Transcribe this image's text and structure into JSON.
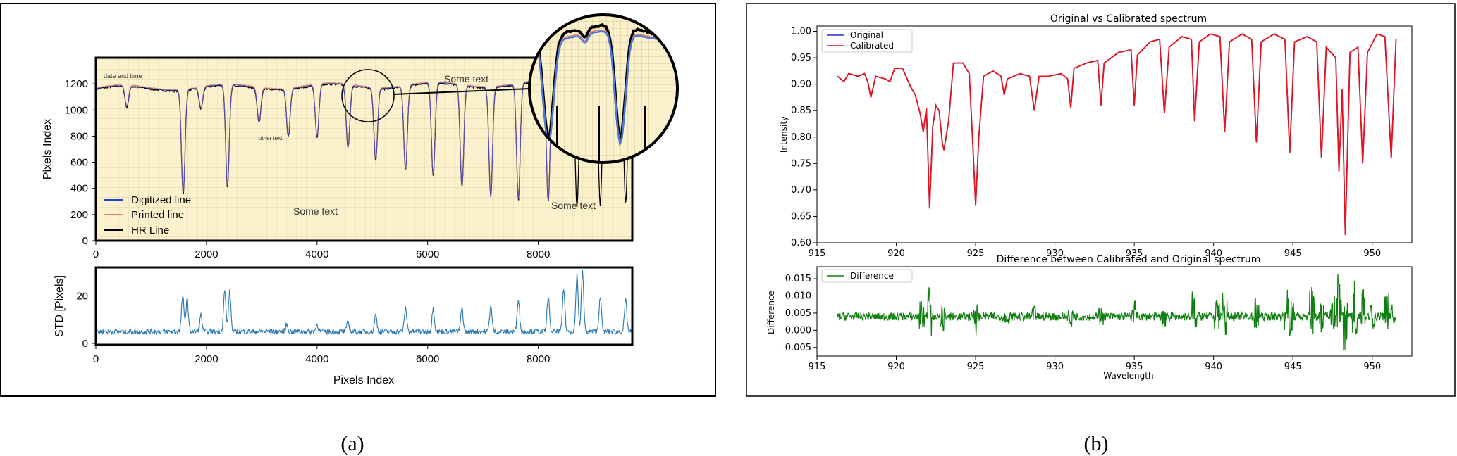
{
  "panels": {
    "a": {
      "label": "(a)"
    },
    "b": {
      "label": "(b)"
    }
  },
  "colors": {
    "paper": "#fbf1cc",
    "grid": "#d9c9a0",
    "digitized": "#1f3fd6",
    "printed": "#e8826a",
    "hr": "#000000",
    "std": "#2a78b4",
    "original": "#2030d0",
    "calibrated": "#e4141e",
    "difference": "#0f7f0f"
  },
  "chart_data": [
    {
      "id": "a-top",
      "type": "line",
      "title": "",
      "xlabel": "",
      "ylabel": "Pixels Index",
      "xlim": [
        0,
        9700
      ],
      "ylim": [
        0,
        1400
      ],
      "xticks": [
        "0",
        "2000",
        "4000",
        "6000",
        "8000"
      ],
      "yticks": [
        "0",
        "200",
        "400",
        "600",
        "800",
        "1000",
        "1200"
      ],
      "legend": {
        "placement": "lower-left",
        "entries": [
          "Digitized line",
          "Printed line",
          "HR Line"
        ]
      },
      "annotations": [
        "date and time",
        "other text",
        "Some text",
        "Some text",
        "Some text"
      ],
      "inset": "magnified circular zoom of region near x=4600–5100",
      "dips": [
        {
          "x": 560,
          "y": 1000
        },
        {
          "x": 1580,
          "y": 370
        },
        {
          "x": 1900,
          "y": 1000
        },
        {
          "x": 2380,
          "y": 380
        },
        {
          "x": 2950,
          "y": 900
        },
        {
          "x": 3480,
          "y": 800
        },
        {
          "x": 4000,
          "y": 760
        },
        {
          "x": 4560,
          "y": 680
        },
        {
          "x": 5060,
          "y": 610
        },
        {
          "x": 5600,
          "y": 520
        },
        {
          "x": 6100,
          "y": 450
        },
        {
          "x": 6620,
          "y": 380
        },
        {
          "x": 7140,
          "y": 320
        },
        {
          "x": 7640,
          "y": 270
        },
        {
          "x": 8180,
          "y": 250
        },
        {
          "x": 8700,
          "y": 230
        },
        {
          "x": 9120,
          "y": 250
        },
        {
          "x": 9580,
          "y": 240
        }
      ],
      "baseline": 1160
    },
    {
      "id": "a-bottom",
      "type": "line",
      "xlabel": "Pixels Index",
      "ylabel": "STD [Pixels]",
      "xlim": [
        0,
        9700
      ],
      "ylim": [
        0,
        32
      ],
      "xticks": [
        "0",
        "2000",
        "4000",
        "6000",
        "8000"
      ],
      "yticks": [
        "0",
        "20"
      ],
      "peaks": [
        {
          "x": 1570,
          "y": 20
        },
        {
          "x": 1650,
          "y": 19
        },
        {
          "x": 1900,
          "y": 12
        },
        {
          "x": 2330,
          "y": 22
        },
        {
          "x": 2420,
          "y": 22
        },
        {
          "x": 3450,
          "y": 8
        },
        {
          "x": 4000,
          "y": 8
        },
        {
          "x": 4560,
          "y": 9
        },
        {
          "x": 5060,
          "y": 12
        },
        {
          "x": 5600,
          "y": 15
        },
        {
          "x": 6100,
          "y": 15
        },
        {
          "x": 6620,
          "y": 15
        },
        {
          "x": 7140,
          "y": 16
        },
        {
          "x": 7640,
          "y": 19
        },
        {
          "x": 8180,
          "y": 20
        },
        {
          "x": 8460,
          "y": 23
        },
        {
          "x": 8700,
          "y": 29
        },
        {
          "x": 8800,
          "y": 30
        },
        {
          "x": 9120,
          "y": 20
        },
        {
          "x": 9580,
          "y": 18
        }
      ],
      "baseline": 5
    },
    {
      "id": "b-top",
      "type": "line",
      "title": "Original vs Calibrated spectrum",
      "xlabel": "",
      "ylabel": "Intensity",
      "xlim": [
        915,
        952.5
      ],
      "ylim": [
        0.6,
        1.01
      ],
      "xticks": [
        "915",
        "920",
        "925",
        "930",
        "935",
        "940",
        "945",
        "950"
      ],
      "yticks": [
        "0.60",
        "0.65",
        "0.70",
        "0.75",
        "0.80",
        "0.85",
        "0.90",
        "0.95",
        "1.00"
      ],
      "legend": {
        "placement": "top-left",
        "entries": [
          "Original",
          "Calibrated"
        ]
      },
      "series": [
        {
          "name": "Original"
        },
        {
          "name": "Calibrated"
        }
      ],
      "points": [
        [
          916.3,
          0.915
        ],
        [
          916.7,
          0.905
        ],
        [
          917.0,
          0.92
        ],
        [
          917.6,
          0.915
        ],
        [
          918.0,
          0.92
        ],
        [
          918.2,
          0.905
        ],
        [
          918.4,
          0.875
        ],
        [
          918.7,
          0.915
        ],
        [
          919.3,
          0.91
        ],
        [
          919.6,
          0.905
        ],
        [
          919.9,
          0.93
        ],
        [
          920.4,
          0.93
        ],
        [
          920.9,
          0.895
        ],
        [
          921.2,
          0.88
        ],
        [
          921.5,
          0.845
        ],
        [
          921.7,
          0.81
        ],
        [
          921.9,
          0.855
        ],
        [
          922.1,
          0.665
        ],
        [
          922.3,
          0.82
        ],
        [
          922.5,
          0.86
        ],
        [
          922.7,
          0.85
        ],
        [
          922.9,
          0.79
        ],
        [
          923.0,
          0.775
        ],
        [
          923.3,
          0.83
        ],
        [
          923.6,
          0.94
        ],
        [
          924.2,
          0.94
        ],
        [
          924.6,
          0.92
        ],
        [
          924.8,
          0.8
        ],
        [
          925.0,
          0.67
        ],
        [
          925.2,
          0.8
        ],
        [
          925.5,
          0.915
        ],
        [
          926.1,
          0.925
        ],
        [
          926.6,
          0.915
        ],
        [
          926.8,
          0.88
        ],
        [
          927.0,
          0.91
        ],
        [
          927.8,
          0.92
        ],
        [
          928.4,
          0.915
        ],
        [
          928.7,
          0.85
        ],
        [
          929.0,
          0.915
        ],
        [
          929.6,
          0.915
        ],
        [
          930.4,
          0.92
        ],
        [
          930.8,
          0.91
        ],
        [
          931.0,
          0.855
        ],
        [
          931.2,
          0.93
        ],
        [
          932.0,
          0.94
        ],
        [
          932.7,
          0.945
        ],
        [
          932.9,
          0.86
        ],
        [
          933.1,
          0.94
        ],
        [
          934.0,
          0.96
        ],
        [
          934.8,
          0.965
        ],
        [
          935.0,
          0.86
        ],
        [
          935.2,
          0.955
        ],
        [
          936.0,
          0.98
        ],
        [
          936.6,
          0.985
        ],
        [
          936.9,
          0.845
        ],
        [
          937.2,
          0.97
        ],
        [
          938.0,
          0.99
        ],
        [
          938.6,
          0.985
        ],
        [
          938.8,
          0.83
        ],
        [
          939.1,
          0.98
        ],
        [
          939.8,
          0.995
        ],
        [
          940.4,
          0.99
        ],
        [
          940.7,
          0.81
        ],
        [
          941.0,
          0.98
        ],
        [
          941.8,
          0.995
        ],
        [
          942.4,
          0.985
        ],
        [
          942.7,
          0.79
        ],
        [
          943.0,
          0.98
        ],
        [
          943.8,
          0.995
        ],
        [
          944.5,
          0.985
        ],
        [
          944.8,
          0.77
        ],
        [
          945.1,
          0.98
        ],
        [
          945.9,
          0.99
        ],
        [
          946.5,
          0.98
        ],
        [
          946.8,
          0.76
        ],
        [
          947.1,
          0.97
        ],
        [
          947.7,
          0.95
        ],
        [
          947.9,
          0.735
        ],
        [
          948.1,
          0.89
        ],
        [
          948.3,
          0.615
        ],
        [
          948.6,
          0.96
        ],
        [
          949.1,
          0.97
        ],
        [
          949.4,
          0.75
        ],
        [
          949.7,
          0.96
        ],
        [
          950.3,
          0.995
        ],
        [
          950.8,
          0.99
        ],
        [
          951.2,
          0.76
        ],
        [
          951.5,
          0.985
        ]
      ]
    },
    {
      "id": "b-bottom",
      "type": "line",
      "title": "Difference between Calibrated and Original spectrum",
      "xlabel": "Wavelength",
      "ylabel": "Difference",
      "xlim": [
        915,
        952.5
      ],
      "ylim": [
        -0.0075,
        0.0185
      ],
      "xticks": [
        "915",
        "920",
        "925",
        "930",
        "935",
        "940",
        "945",
        "950"
      ],
      "yticks": [
        "-0.005",
        "0.000",
        "0.005",
        "0.010",
        "0.015"
      ],
      "legend": {
        "placement": "top-left",
        "entries": [
          "Difference"
        ]
      },
      "series": [
        {
          "name": "Difference"
        }
      ],
      "baseline": 0.004,
      "spikes": [
        {
          "x": 922.1,
          "hi": 0.0125,
          "lo": -0.002
        },
        {
          "x": 921.6,
          "hi": 0.009,
          "lo": 0.0
        },
        {
          "x": 922.9,
          "hi": 0.008,
          "lo": -0.001
        },
        {
          "x": 925.0,
          "hi": 0.0095,
          "lo": -0.0015
        },
        {
          "x": 927.0,
          "hi": 0.005,
          "lo": 0.002
        },
        {
          "x": 928.7,
          "hi": 0.0075,
          "lo": 0.0015
        },
        {
          "x": 931.0,
          "hi": 0.0065,
          "lo": 0.001
        },
        {
          "x": 932.9,
          "hi": 0.007,
          "lo": 0.0015
        },
        {
          "x": 935.0,
          "hi": 0.009,
          "lo": 0.0
        },
        {
          "x": 936.9,
          "hi": 0.007,
          "lo": 0.0
        },
        {
          "x": 938.8,
          "hi": 0.0125,
          "lo": 0.0
        },
        {
          "x": 940.2,
          "hi": 0.01,
          "lo": 0.0
        },
        {
          "x": 940.7,
          "hi": 0.011,
          "lo": -0.0015
        },
        {
          "x": 942.7,
          "hi": 0.0105,
          "lo": -0.0015
        },
        {
          "x": 944.6,
          "hi": 0.012,
          "lo": 0.0
        },
        {
          "x": 944.9,
          "hi": 0.009,
          "lo": -0.0025
        },
        {
          "x": 946.2,
          "hi": 0.013,
          "lo": -0.001
        },
        {
          "x": 946.8,
          "hi": 0.0105,
          "lo": -0.002
        },
        {
          "x": 947.5,
          "hi": 0.011,
          "lo": -0.002
        },
        {
          "x": 947.9,
          "hi": 0.0175,
          "lo": -0.004
        },
        {
          "x": 948.3,
          "hi": 0.009,
          "lo": -0.0065
        },
        {
          "x": 948.9,
          "hi": 0.0155,
          "lo": -0.0015
        },
        {
          "x": 949.4,
          "hi": 0.0125,
          "lo": 0.001
        },
        {
          "x": 950.0,
          "hi": 0.008,
          "lo": 0.0
        },
        {
          "x": 950.9,
          "hi": 0.0145,
          "lo": 0.0
        },
        {
          "x": 951.3,
          "hi": 0.008,
          "lo": 0.001
        }
      ]
    }
  ]
}
